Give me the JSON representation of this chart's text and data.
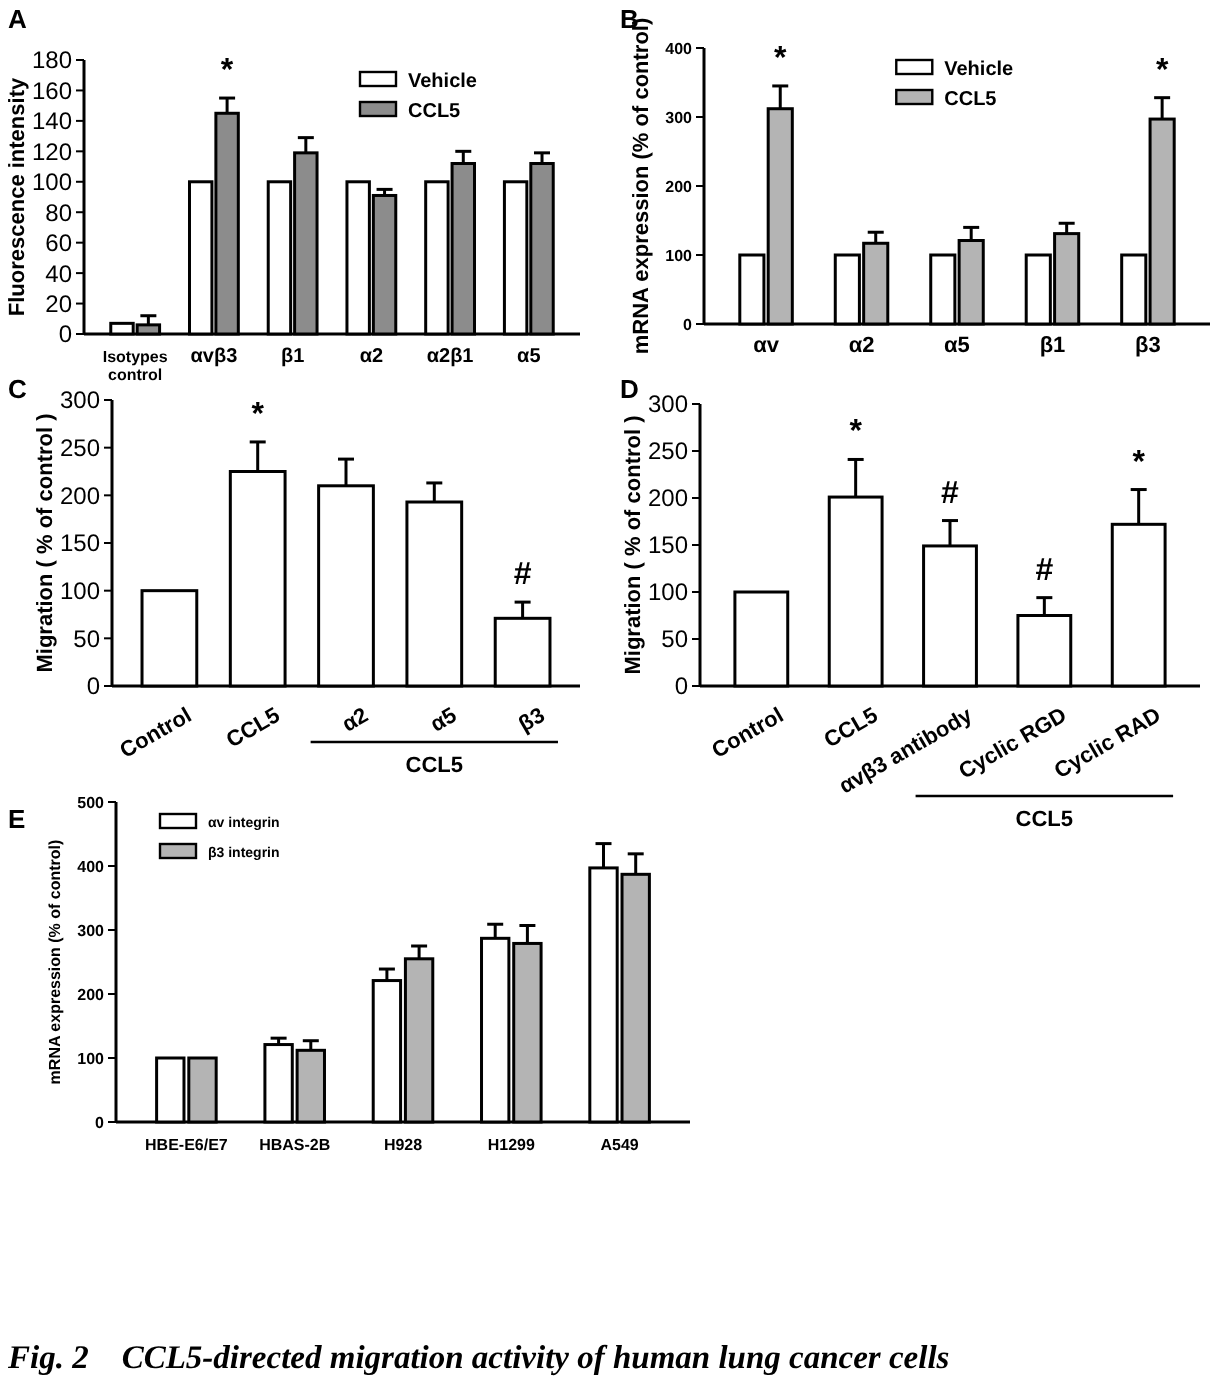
{
  "chart_data": [
    {
      "type": "bar",
      "title": "A",
      "ylabel": "Fluorescence intensity",
      "categories": [
        "Isotypes control",
        "αvβ3",
        "β1",
        "α2",
        "α2β1",
        "α5"
      ],
      "series": [
        {
          "name": "Vehicle",
          "color": "#ffffff",
          "values": [
            7,
            100,
            100,
            100,
            100,
            100
          ],
          "errors": [
            null,
            null,
            null,
            null,
            null,
            null
          ]
        },
        {
          "name": "CCL5",
          "color": "#8c8c8c",
          "values": [
            6,
            145,
            119,
            91,
            112,
            112
          ],
          "errors": [
            6,
            10,
            10,
            4,
            8,
            7
          ]
        }
      ],
      "ylim": [
        0,
        180
      ],
      "yticks": [
        0,
        20,
        40,
        60,
        80,
        100,
        120,
        140,
        160,
        180
      ],
      "legend": "top right",
      "annotations": [
        {
          "text": "*",
          "x": "αvβ3",
          "y": 155
        }
      ]
    },
    {
      "type": "bar",
      "title": "B",
      "ylabel": "mRNA expression (% of control)",
      "categories": [
        "αv",
        "α2",
        "α5",
        "β1",
        "β3"
      ],
      "series": [
        {
          "name": "Vehicle",
          "color": "#ffffff",
          "values": [
            100,
            100,
            100,
            100,
            100
          ],
          "errors": [
            null,
            null,
            null,
            null,
            null
          ]
        },
        {
          "name": "CCL5",
          "color": "#b4b4b4",
          "values": [
            312,
            117,
            121,
            131,
            297
          ],
          "errors": [
            33,
            16,
            19,
            15,
            31
          ]
        }
      ],
      "ylim": [
        0,
        400
      ],
      "yticks": [
        0,
        100,
        200,
        300,
        400
      ],
      "legend": "top",
      "annotations": [
        {
          "text": "*",
          "x": "αv",
          "y": 345
        },
        {
          "text": "*",
          "x": "β3",
          "y": 328
        }
      ]
    },
    {
      "type": "bar",
      "title": "C",
      "ylabel": "Migration ( % of control )",
      "categories": [
        "Control",
        "CCL5",
        "α2",
        "α5",
        "β3"
      ],
      "values": [
        100,
        225,
        210,
        193,
        71
      ],
      "errors": [
        null,
        31,
        28,
        20,
        17
      ],
      "color": "#ffffff",
      "ylim": [
        0,
        300
      ],
      "yticks": [
        0,
        50,
        100,
        150,
        200,
        250,
        300
      ],
      "annotations": [
        {
          "text": "*",
          "x": "CCL5",
          "y": 256
        },
        {
          "text": "#",
          "x": "β3",
          "y": 88
        },
        "CCL5"
      ]
    },
    {
      "type": "bar",
      "title": "D",
      "ylabel": "Migration ( % of control )",
      "categories": [
        "Control",
        "CCL5",
        "αvβ3 antibody",
        "Cyclic RGD",
        "Cyclic RAD"
      ],
      "values": [
        100,
        201,
        149,
        75,
        172
      ],
      "errors": [
        null,
        40,
        27,
        19,
        37
      ],
      "color": "#ffffff",
      "ylim": [
        0,
        300
      ],
      "yticks": [
        0,
        50,
        100,
        150,
        200,
        250,
        300
      ],
      "annotations": [
        {
          "text": "*",
          "x": "CCL5",
          "y": 201
        },
        {
          "text": "#",
          "x": "αvβ3 antibody",
          "y": 149
        },
        {
          "text": "#",
          "x": "Cyclic RGD",
          "y": 75
        },
        {
          "text": "*",
          "x": "Cyclic RAD",
          "y": 172
        },
        "CCL5"
      ]
    },
    {
      "type": "bar",
      "title": "E",
      "ylabel": "mRNA expression (% of control)",
      "categories": [
        "HBE-E6/E7",
        "HBAS-2B",
        "H928",
        "H1299",
        "A549"
      ],
      "series": [
        {
          "name": "αv integrin",
          "color": "#ffffff",
          "values": [
            100,
            121,
            221,
            287,
            397
          ],
          "errors": [
            null,
            10,
            18,
            22,
            38
          ]
        },
        {
          "name": "β3 integrin",
          "color": "#b4b4b4",
          "values": [
            100,
            112,
            255,
            279,
            387
          ],
          "errors": [
            null,
            15,
            20,
            28,
            32
          ]
        }
      ],
      "ylim": [
        0,
        500
      ],
      "yticks": [
        0,
        100,
        200,
        300,
        400,
        500
      ],
      "legend": "top left",
      "annotations": [
        "Fig. 2    CCL5-directed migration activity of human lung cancer cells"
      ]
    }
  ]
}
